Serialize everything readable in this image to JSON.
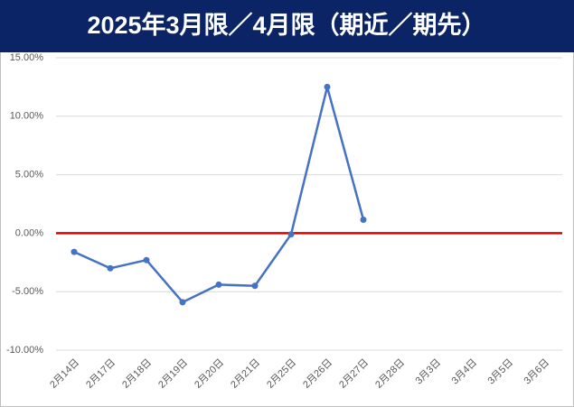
{
  "chart_data": {
    "type": "line",
    "title": "2025年3月限／4月限（期近／期先）",
    "categories": [
      "2月14日",
      "2月17日",
      "2月18日",
      "2月19日",
      "2月20日",
      "2月21日",
      "2月25日",
      "2月26日",
      "2月27日",
      "2月28日",
      "3月3日",
      "3月4日",
      "3月5日",
      "3月6日"
    ],
    "values": [
      -1.6,
      -3.0,
      -2.3,
      -5.9,
      -4.4,
      -4.5,
      -0.1,
      12.5,
      1.15,
      null,
      null,
      null,
      null,
      null
    ],
    "color": "#4472c4",
    "baseline_color": "#e00000",
    "ylim": [
      -10,
      15
    ],
    "yticks": [
      {
        "value": -10,
        "label": "-10.00%"
      },
      {
        "value": -5,
        "label": "-5.00%"
      },
      {
        "value": 0,
        "label": "0.00%"
      },
      {
        "value": 5,
        "label": "5.00%"
      },
      {
        "value": 10,
        "label": "10.00%"
      },
      {
        "value": 15,
        "label": "15.00%"
      }
    ],
    "grid": true
  }
}
